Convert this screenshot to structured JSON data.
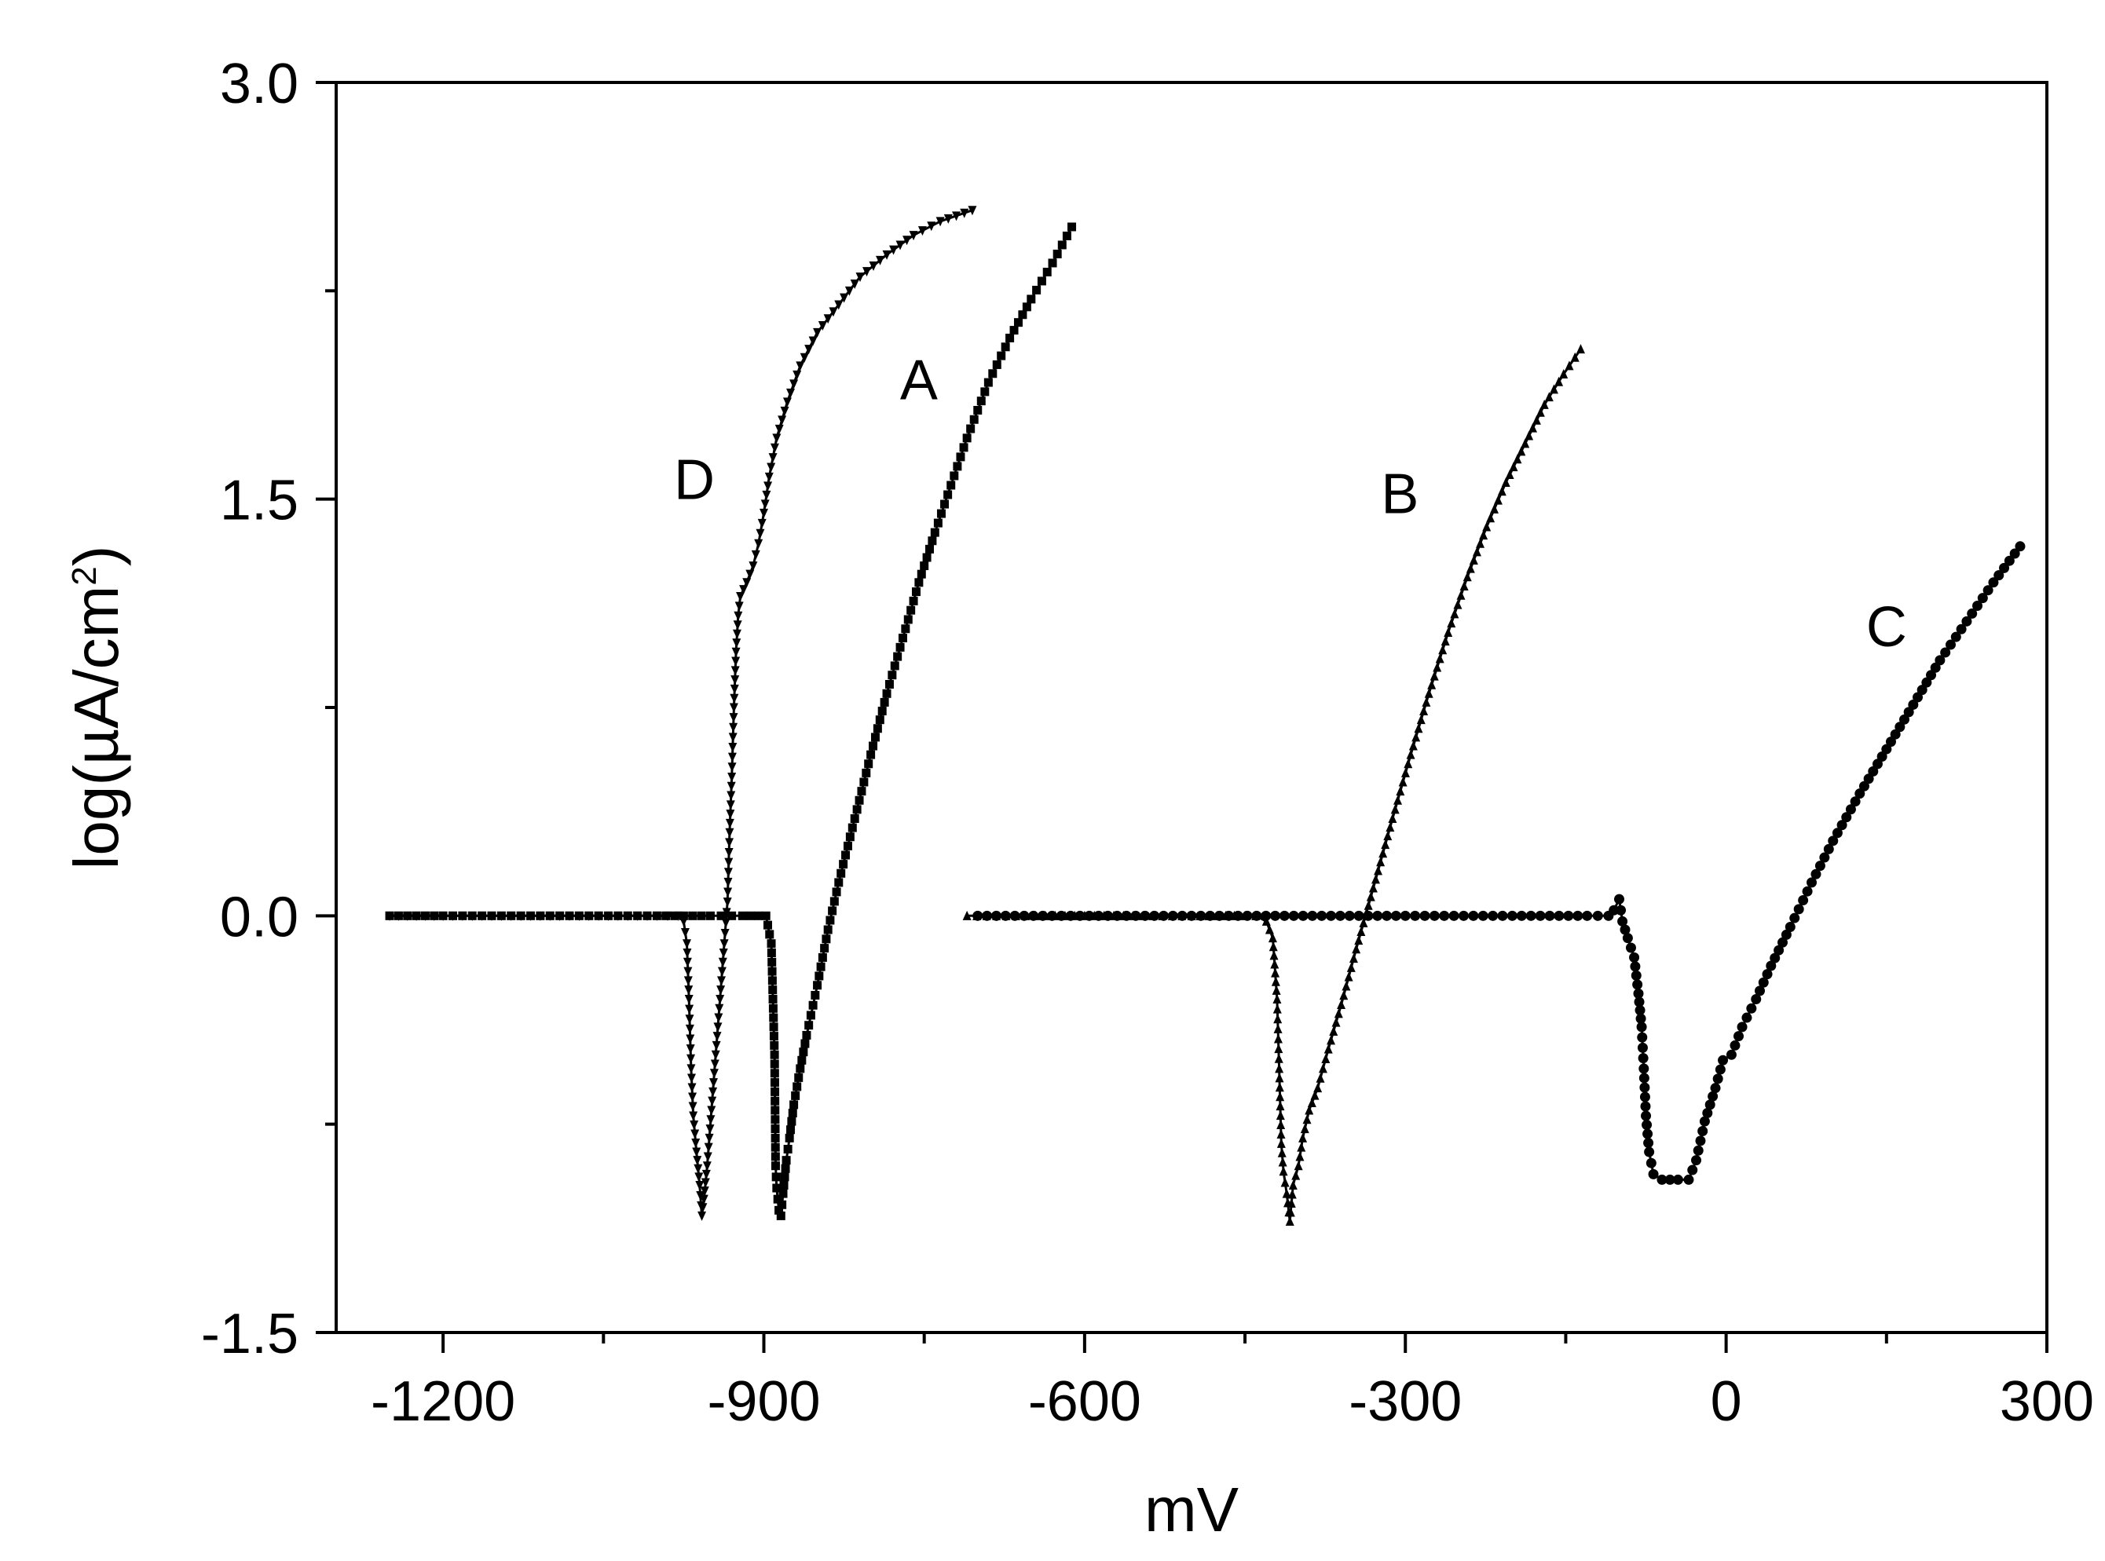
{
  "chart_data": {
    "type": "line",
    "title": "",
    "xlabel": "mV",
    "ylabel_parts": [
      "log(µA/cm",
      "2",
      ")"
    ],
    "xlim": [
      -1300,
      300
    ],
    "ylim": [
      -1.5,
      3.0
    ],
    "x_ticks": [
      -1200,
      -900,
      -600,
      -300,
      0,
      300
    ],
    "x_tick_labels": [
      "-1200",
      "-900",
      "-600",
      "-300",
      "0",
      "300"
    ],
    "x_minor_ticks": [
      -1050,
      -750,
      -450,
      -150,
      150
    ],
    "y_ticks": [
      3.0,
      1.5,
      0.0,
      -1.5
    ],
    "y_tick_labels": [
      "3.0",
      "1.5",
      "0.0",
      "-1.5"
    ],
    "grid": false,
    "series": [
      {
        "name": "A",
        "marker": "square",
        "points": [
          [
            -1250,
            0
          ],
          [
            -1200,
            0
          ],
          [
            -1100,
            0
          ],
          [
            -1000,
            0
          ],
          [
            -950,
            0
          ],
          [
            -920,
            0
          ],
          [
            -905,
            0
          ],
          [
            -898,
            0
          ],
          [
            -893,
            -0.1
          ],
          [
            -890,
            -0.5
          ],
          [
            -889,
            -0.9
          ],
          [
            -888,
            -0.98
          ],
          [
            -886,
            -1.06
          ],
          [
            -884,
            -1.08
          ],
          [
            -882,
            -1.0
          ],
          [
            -879,
            -0.88
          ],
          [
            -876,
            -0.8
          ],
          [
            -872,
            -0.68
          ],
          [
            -866,
            -0.55
          ],
          [
            -860,
            -0.43
          ],
          [
            -850,
            -0.25
          ],
          [
            -840,
            -0.05
          ],
          [
            -830,
            0.12
          ],
          [
            -815,
            0.35
          ],
          [
            -800,
            0.58
          ],
          [
            -785,
            0.8
          ],
          [
            -770,
            1.0
          ],
          [
            -755,
            1.2
          ],
          [
            -740,
            1.38
          ],
          [
            -725,
            1.55
          ],
          [
            -710,
            1.72
          ],
          [
            -690,
            1.92
          ],
          [
            -670,
            2.08
          ],
          [
            -650,
            2.22
          ],
          [
            -630,
            2.35
          ],
          [
            -612,
            2.48
          ]
        ]
      },
      {
        "name": "B",
        "marker": "triangle-up",
        "points": [
          [
            -710,
            0
          ],
          [
            -600,
            0
          ],
          [
            -500,
            0
          ],
          [
            -460,
            0
          ],
          [
            -440,
            0
          ],
          [
            -430,
            -0.02
          ],
          [
            -424,
            -0.08
          ],
          [
            -420,
            -0.3
          ],
          [
            -418,
            -0.55
          ],
          [
            -416,
            -0.82
          ],
          [
            -414,
            -0.92
          ],
          [
            -411,
            -1.0
          ],
          [
            -408,
            -1.1
          ],
          [
            -405,
            -0.97
          ],
          [
            -400,
            -0.9
          ],
          [
            -396,
            -0.8
          ],
          [
            -390,
            -0.7
          ],
          [
            -382,
            -0.62
          ],
          [
            -372,
            -0.48
          ],
          [
            -360,
            -0.32
          ],
          [
            -346,
            -0.12
          ],
          [
            -330,
            0.1
          ],
          [
            -312,
            0.35
          ],
          [
            -295,
            0.58
          ],
          [
            -278,
            0.8
          ],
          [
            -260,
            1.02
          ],
          [
            -242,
            1.22
          ],
          [
            -224,
            1.4
          ],
          [
            -206,
            1.56
          ],
          [
            -188,
            1.7
          ],
          [
            -170,
            1.84
          ],
          [
            -152,
            1.95
          ],
          [
            -136,
            2.04
          ]
        ]
      },
      {
        "name": "C",
        "marker": "circle",
        "points": [
          [
            -700,
            0
          ],
          [
            -500,
            0
          ],
          [
            -300,
            0
          ],
          [
            -200,
            0
          ],
          [
            -130,
            0
          ],
          [
            -110,
            0
          ],
          [
            -105,
            0.02
          ],
          [
            -100,
            0.06
          ],
          [
            -97,
            -0.02
          ],
          [
            -92,
            -0.08
          ],
          [
            -86,
            -0.15
          ],
          [
            -82,
            -0.28
          ],
          [
            -79,
            -0.4
          ],
          [
            -77,
            -0.55
          ],
          [
            -75,
            -0.72
          ],
          [
            -72,
            -0.85
          ],
          [
            -68,
            -0.93
          ],
          [
            -60,
            -0.95
          ],
          [
            -45,
            -0.95
          ],
          [
            -35,
            -0.95
          ],
          [
            -28,
            -0.88
          ],
          [
            -20,
            -0.74
          ],
          [
            -10,
            -0.62
          ],
          [
            -3,
            -0.52
          ],
          [
            5,
            -0.5
          ],
          [
            15,
            -0.4
          ],
          [
            28,
            -0.3
          ],
          [
            42,
            -0.18
          ],
          [
            60,
            -0.04
          ],
          [
            80,
            0.12
          ],
          [
            100,
            0.27
          ],
          [
            125,
            0.44
          ],
          [
            150,
            0.6
          ],
          [
            175,
            0.76
          ],
          [
            200,
            0.92
          ],
          [
            225,
            1.06
          ],
          [
            250,
            1.2
          ],
          [
            275,
            1.33
          ]
        ]
      },
      {
        "name": "D",
        "marker": "triangle-down",
        "points": [
          [
            -1250,
            0
          ],
          [
            -1200,
            0
          ],
          [
            -1100,
            0
          ],
          [
            -1000,
            0
          ],
          [
            -980,
            0
          ],
          [
            -975,
            -0.02
          ],
          [
            -972,
            -0.1
          ],
          [
            -970,
            -0.3
          ],
          [
            -968,
            -0.55
          ],
          [
            -966,
            -0.72
          ],
          [
            -963,
            -0.85
          ],
          [
            -960,
            -0.97
          ],
          [
            -958,
            -1.08
          ],
          [
            -956,
            -1.02
          ],
          [
            -953,
            -0.9
          ],
          [
            -949,
            -0.7
          ],
          [
            -945,
            -0.5
          ],
          [
            -941,
            -0.3
          ],
          [
            -937,
            -0.1
          ],
          [
            -934,
            0.05
          ],
          [
            -932,
            0.3
          ],
          [
            -930,
            0.5
          ],
          [
            -928,
            0.75
          ],
          [
            -926,
            0.95
          ],
          [
            -924,
            1.08
          ],
          [
            -922,
            1.15
          ],
          [
            -916,
            1.2
          ],
          [
            -910,
            1.26
          ],
          [
            -905,
            1.34
          ],
          [
            -900,
            1.45
          ],
          [
            -895,
            1.58
          ],
          [
            -888,
            1.72
          ],
          [
            -878,
            1.85
          ],
          [
            -866,
            1.98
          ],
          [
            -850,
            2.1
          ],
          [
            -830,
            2.2
          ],
          [
            -810,
            2.3
          ],
          [
            -785,
            2.38
          ],
          [
            -760,
            2.45
          ],
          [
            -735,
            2.5
          ],
          [
            -705,
            2.54
          ]
        ]
      }
    ],
    "annotations": [
      {
        "text": "A",
        "x": -755,
        "y": 1.86
      },
      {
        "text": "D",
        "x": -965,
        "y": 1.5
      },
      {
        "text": "B",
        "x": -305,
        "y": 1.45
      },
      {
        "text": "C",
        "x": 150,
        "y": 0.97
      }
    ]
  }
}
